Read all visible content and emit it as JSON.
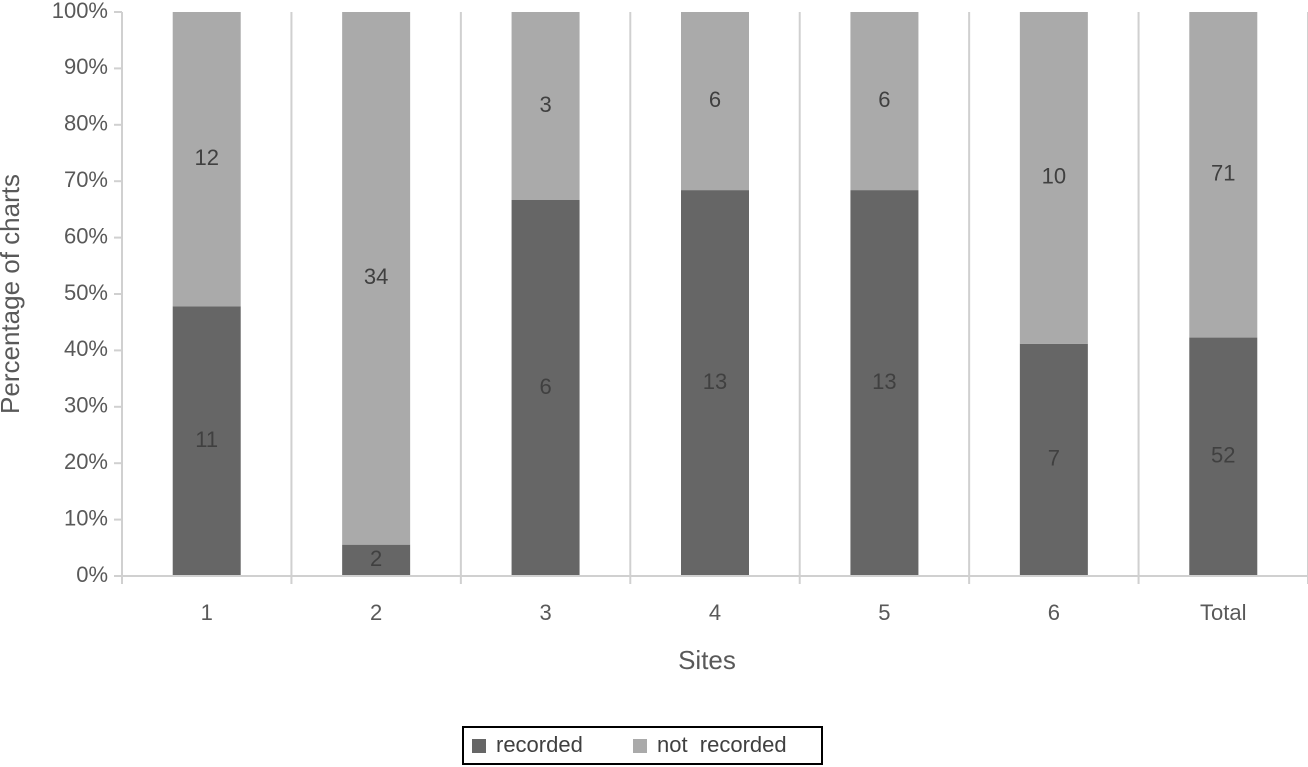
{
  "chart_data": {
    "type": "bar",
    "stack": "percent",
    "x_label": "Sites",
    "y_label": "Percentage of charts",
    "categories": [
      "1",
      "2",
      "3",
      "4",
      "5",
      "6",
      "Total"
    ],
    "series": [
      {
        "name": "recorded",
        "color": "#666666",
        "values": [
          11,
          2,
          6,
          13,
          13,
          7,
          52
        ]
      },
      {
        "name": "not  recorded",
        "color": "#aaaaaa",
        "values": [
          12,
          34,
          3,
          6,
          6,
          10,
          71
        ]
      }
    ],
    "ylim": [
      0,
      100
    ],
    "yticks": [
      {
        "value": 0,
        "label": "0%"
      },
      {
        "value": 10,
        "label": "10%"
      },
      {
        "value": 20,
        "label": "20%"
      },
      {
        "value": 30,
        "label": "30%"
      },
      {
        "value": 40,
        "label": "40%"
      },
      {
        "value": 50,
        "label": "50%"
      },
      {
        "value": 60,
        "label": "60%"
      },
      {
        "value": 70,
        "label": "70%"
      },
      {
        "value": 80,
        "label": "80%"
      },
      {
        "value": 90,
        "label": "90%"
      },
      {
        "value": 100,
        "label": "100%"
      }
    ],
    "legend": "bottom"
  }
}
